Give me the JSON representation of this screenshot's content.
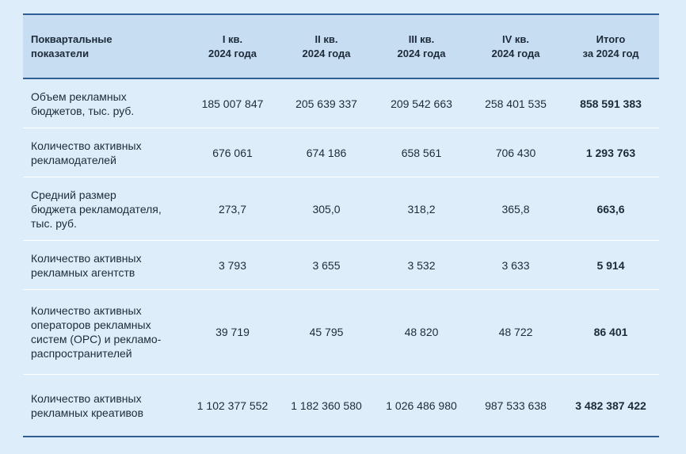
{
  "header": {
    "indicator": [
      "Поквартальные",
      "показатели"
    ],
    "q1": [
      "I кв.",
      "2024 года"
    ],
    "q2": [
      "II кв.",
      "2024 года"
    ],
    "q3": [
      "III кв.",
      "2024 года"
    ],
    "q4": [
      "IV кв.",
      "2024 года"
    ],
    "total": [
      "Итого",
      "за 2024 год"
    ]
  },
  "rows": [
    {
      "label": [
        "Объем рекламных",
        "бюджетов, тыс. руб."
      ],
      "q1": "185 007 847",
      "q2": "205 639 337",
      "q3": "209 542 663",
      "q4": "258 401 535",
      "total": "858 591 383"
    },
    {
      "label": [
        "Количество активных",
        "рекламодателей"
      ],
      "q1": "676 061",
      "q2": "674 186",
      "q3": "658 561",
      "q4": "706 430",
      "total": "1 293 763"
    },
    {
      "label": [
        "Средний размер",
        "бюджета рекламодателя,",
        "тыс. руб."
      ],
      "q1": "273,7",
      "q2": "305,0",
      "q3": "318,2",
      "q4": "365,8",
      "total": "663,6"
    },
    {
      "label": [
        "Количество активных",
        "рекламных агентств"
      ],
      "q1": "3 793",
      "q2": "3 655",
      "q3": "3 532",
      "q4": "3 633",
      "total": "5 914"
    },
    {
      "label": [
        "Количество активных",
        "операторов рекламных",
        "систем (ОРС) и рекламо-",
        "распространителей"
      ],
      "q1": "39 719",
      "q2": "45 795",
      "q3": "48 820",
      "q4": "48 722",
      "total": "86 401"
    },
    {
      "label": [
        "Количество активных",
        "рекламных креативов"
      ],
      "q1": "1 102 377 552",
      "q2": "1 182 360 580",
      "q3": "1 026 486 980",
      "q4": "987 533 638",
      "total": "3 482 387 422"
    }
  ]
}
